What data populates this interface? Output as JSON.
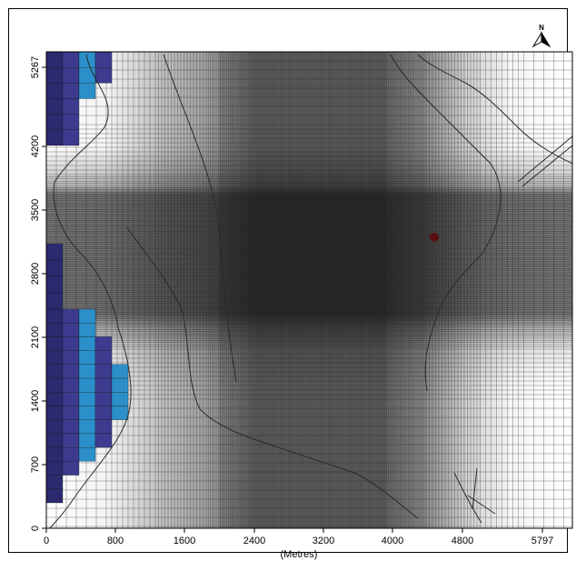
{
  "map": {
    "x_axis_label": "(Metres)",
    "x_ticks": [
      "0",
      "800",
      "1600",
      "2400",
      "3200",
      "4000",
      "4800",
      "5797"
    ],
    "y_ticks": [
      "0",
      "700",
      "1400",
      "2100",
      "2800",
      "3500",
      "4200",
      "5267"
    ],
    "north_arrow_label": "N",
    "colors": {
      "grid_line": "#1a1a1a",
      "dark_band": "#3a3a3a",
      "cell_dark_blue": "#2b2a6e",
      "cell_mid_blue": "#3d3b8e",
      "cell_light_blue": "#2c8fc9",
      "marker": "#5a1010"
    }
  }
}
